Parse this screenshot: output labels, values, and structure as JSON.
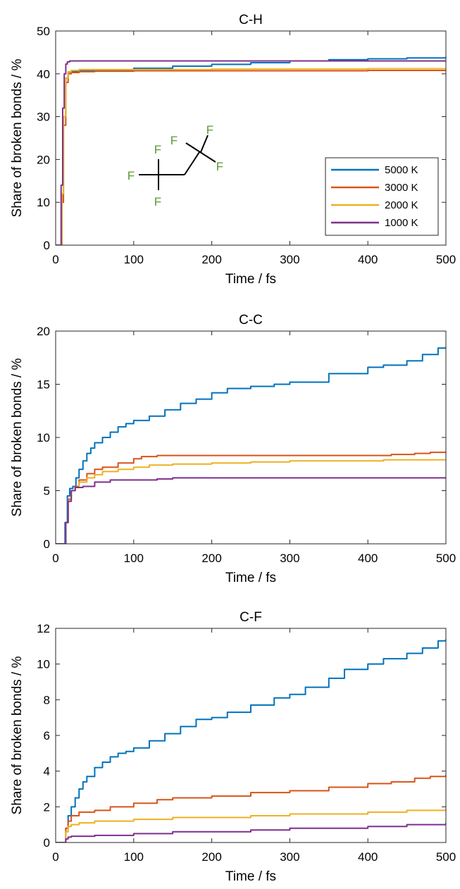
{
  "chart_data": [
    {
      "type": "line",
      "title": "C-H",
      "xlabel": "Time / fs",
      "ylabel": "Share of broken bonds / %",
      "xlim": [
        0,
        500
      ],
      "ylim": [
        0,
        50
      ],
      "xticks": [
        "0",
        "100",
        "200",
        "300",
        "400",
        "500"
      ],
      "yticks": [
        "0",
        "10",
        "20",
        "30",
        "40",
        "50"
      ],
      "legend": {
        "placement": "lower-right"
      },
      "molecule": {
        "atoms": [
          "F",
          "F",
          "F",
          "F",
          "F",
          "F"
        ]
      },
      "series": [
        {
          "name": "5000 K",
          "color": "#0072BD",
          "x": [
            0,
            5,
            8,
            10,
            13,
            16,
            20,
            30,
            50,
            100,
            150,
            200,
            250,
            300,
            350,
            400,
            450,
            500
          ],
          "y": [
            0,
            0,
            12,
            30,
            39,
            40.4,
            40.6,
            40.8,
            40.9,
            41.3,
            41.8,
            42.2,
            42.6,
            43.0,
            43.3,
            43.5,
            43.7,
            44.0
          ]
        },
        {
          "name": "3000 K",
          "color": "#D95319",
          "x": [
            0,
            5,
            8,
            10,
            13,
            16,
            20,
            30,
            50,
            100,
            200,
            300,
            400,
            500
          ],
          "y": [
            0,
            0,
            10,
            28,
            38,
            40.0,
            40.3,
            40.5,
            40.6,
            40.7,
            40.7,
            40.7,
            40.8,
            40.8
          ]
        },
        {
          "name": "2000 K",
          "color": "#EDB120",
          "x": [
            0,
            5,
            8,
            10,
            13,
            16,
            20,
            30,
            50,
            100,
            200,
            300,
            400,
            500
          ],
          "y": [
            0,
            0,
            12,
            30,
            39,
            40.5,
            40.8,
            41.0,
            41.0,
            41.0,
            41.1,
            41.1,
            41.2,
            41.2
          ]
        },
        {
          "name": "1000 K",
          "color": "#7E2F8E",
          "x": [
            0,
            4,
            7,
            9,
            11,
            13,
            15,
            18,
            25,
            50,
            100,
            200,
            300,
            400,
            500
          ],
          "y": [
            0,
            0,
            14,
            32,
            40,
            42.3,
            42.8,
            43.0,
            43.0,
            43.0,
            43.0,
            43.0,
            43.0,
            43.0,
            43.0
          ]
        }
      ]
    },
    {
      "type": "line",
      "title": "C-C",
      "xlabel": "Time / fs",
      "ylabel": "Share of broken bonds / %",
      "xlim": [
        0,
        500
      ],
      "ylim": [
        0,
        20
      ],
      "xticks": [
        "0",
        "100",
        "200",
        "300",
        "400",
        "500"
      ],
      "yticks": [
        "0",
        "5",
        "10",
        "15",
        "20"
      ],
      "series": [
        {
          "name": "5000 K",
          "color": "#0072BD",
          "x": [
            0,
            10,
            12,
            15,
            18,
            22,
            26,
            30,
            35,
            40,
            45,
            50,
            60,
            70,
            80,
            90,
            100,
            120,
            140,
            160,
            180,
            200,
            220,
            250,
            280,
            300,
            350,
            400,
            420,
            450,
            470,
            490,
            500
          ],
          "y": [
            0,
            0,
            2,
            4.5,
            5.2,
            5.4,
            6.2,
            7.0,
            7.8,
            8.5,
            9.0,
            9.5,
            10.0,
            10.5,
            11.0,
            11.3,
            11.6,
            12.0,
            12.6,
            13.2,
            13.6,
            14.2,
            14.6,
            14.8,
            15.0,
            15.2,
            16.0,
            16.6,
            16.8,
            17.2,
            17.8,
            18.4,
            18.5
          ]
        },
        {
          "name": "3000 K",
          "color": "#D95319",
          "x": [
            0,
            10,
            13,
            16,
            20,
            25,
            30,
            40,
            50,
            60,
            80,
            100,
            110,
            130,
            200,
            300,
            400,
            430,
            460,
            480,
            500
          ],
          "y": [
            0,
            0,
            2,
            4.2,
            5.0,
            5.4,
            6.0,
            6.6,
            7.0,
            7.2,
            7.6,
            8.0,
            8.2,
            8.3,
            8.3,
            8.3,
            8.3,
            8.4,
            8.5,
            8.6,
            8.7
          ]
        },
        {
          "name": "2000 K",
          "color": "#EDB120",
          "x": [
            0,
            10,
            13,
            16,
            20,
            25,
            30,
            40,
            50,
            60,
            80,
            100,
            120,
            150,
            200,
            250,
            300,
            400,
            420,
            450,
            500
          ],
          "y": [
            0,
            0,
            2,
            4.0,
            5.0,
            5.3,
            5.8,
            6.2,
            6.5,
            6.8,
            7.0,
            7.2,
            7.4,
            7.5,
            7.6,
            7.7,
            7.8,
            7.8,
            7.9,
            7.9,
            7.9
          ]
        },
        {
          "name": "1000 K",
          "color": "#7E2F8E",
          "x": [
            0,
            10,
            13,
            16,
            20,
            25,
            35,
            50,
            70,
            100,
            130,
            150,
            170,
            200,
            300,
            400,
            500
          ],
          "y": [
            0,
            0,
            2,
            4.0,
            5.0,
            5.3,
            5.4,
            5.8,
            6.0,
            6.0,
            6.1,
            6.2,
            6.2,
            6.2,
            6.2,
            6.2,
            6.2
          ]
        }
      ]
    },
    {
      "type": "line",
      "title": "C-F",
      "xlabel": "Time / fs",
      "ylabel": "Share of broken bonds / %",
      "xlim": [
        0,
        500
      ],
      "ylim": [
        0,
        12
      ],
      "xticks": [
        "0",
        "100",
        "200",
        "300",
        "400",
        "500"
      ],
      "yticks": [
        "0",
        "2",
        "4",
        "6",
        "8",
        "10",
        "12"
      ],
      "series": [
        {
          "name": "5000 K",
          "color": "#0072BD",
          "x": [
            0,
            10,
            13,
            16,
            20,
            25,
            30,
            35,
            40,
            50,
            60,
            70,
            80,
            90,
            100,
            120,
            140,
            160,
            180,
            200,
            220,
            250,
            280,
            300,
            320,
            350,
            370,
            400,
            420,
            450,
            470,
            490,
            500
          ],
          "y": [
            0,
            0,
            0.8,
            1.5,
            2.0,
            2.5,
            3.0,
            3.4,
            3.7,
            4.2,
            4.5,
            4.8,
            5.0,
            5.1,
            5.3,
            5.7,
            6.1,
            6.5,
            6.9,
            7.0,
            7.3,
            7.7,
            8.1,
            8.3,
            8.7,
            9.2,
            9.7,
            10.0,
            10.3,
            10.6,
            10.9,
            11.3,
            11.4
          ]
        },
        {
          "name": "3000 K",
          "color": "#D95319",
          "x": [
            0,
            10,
            13,
            16,
            20,
            30,
            50,
            70,
            100,
            130,
            150,
            200,
            250,
            300,
            350,
            400,
            430,
            460,
            480,
            500
          ],
          "y": [
            0,
            0,
            0.8,
            1.2,
            1.5,
            1.7,
            1.8,
            2.0,
            2.2,
            2.4,
            2.5,
            2.6,
            2.8,
            2.9,
            3.1,
            3.3,
            3.4,
            3.6,
            3.7,
            3.8
          ]
        },
        {
          "name": "2000 K",
          "color": "#EDB120",
          "x": [
            0,
            10,
            13,
            16,
            20,
            30,
            50,
            100,
            150,
            200,
            250,
            300,
            350,
            400,
            450,
            480,
            500
          ],
          "y": [
            0,
            0,
            0.6,
            0.9,
            1.0,
            1.1,
            1.2,
            1.3,
            1.4,
            1.4,
            1.5,
            1.6,
            1.6,
            1.7,
            1.8,
            1.8,
            1.9
          ]
        },
        {
          "name": "1000 K",
          "color": "#7E2F8E",
          "x": [
            0,
            10,
            13,
            16,
            20,
            50,
            100,
            150,
            200,
            250,
            300,
            350,
            400,
            450,
            500
          ],
          "y": [
            0,
            0,
            0.2,
            0.3,
            0.35,
            0.4,
            0.5,
            0.6,
            0.6,
            0.7,
            0.8,
            0.8,
            0.9,
            1.0,
            1.1
          ]
        }
      ]
    }
  ]
}
